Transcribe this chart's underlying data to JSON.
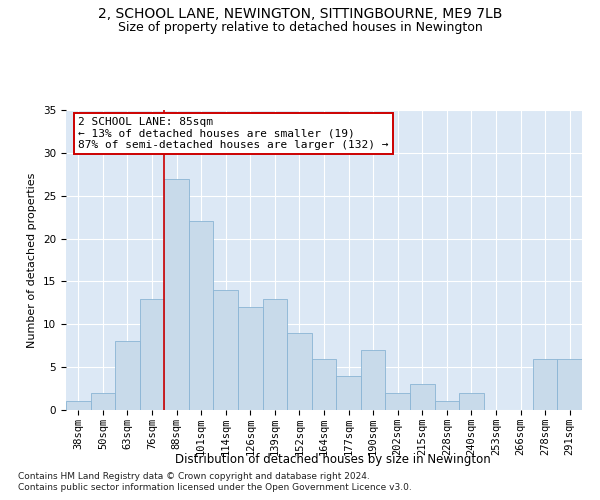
{
  "title": "2, SCHOOL LANE, NEWINGTON, SITTINGBOURNE, ME9 7LB",
  "subtitle": "Size of property relative to detached houses in Newington",
  "xlabel": "Distribution of detached houses by size in Newington",
  "ylabel": "Number of detached properties",
  "categories": [
    "38sqm",
    "50sqm",
    "63sqm",
    "76sqm",
    "88sqm",
    "101sqm",
    "114sqm",
    "126sqm",
    "139sqm",
    "152sqm",
    "164sqm",
    "177sqm",
    "190sqm",
    "202sqm",
    "215sqm",
    "228sqm",
    "240sqm",
    "253sqm",
    "266sqm",
    "278sqm",
    "291sqm"
  ],
  "values": [
    1,
    2,
    8,
    13,
    27,
    22,
    14,
    12,
    13,
    9,
    6,
    4,
    7,
    2,
    3,
    1,
    2,
    0,
    0,
    6,
    6
  ],
  "bar_color": "#c8daea",
  "bar_edge_color": "#8ab4d4",
  "highlight_index": 4,
  "highlight_line_color": "#cc0000",
  "annotation_text": "2 SCHOOL LANE: 85sqm\n← 13% of detached houses are smaller (19)\n87% of semi-detached houses are larger (132) →",
  "annotation_box_color": "#ffffff",
  "annotation_box_edge": "#cc0000",
  "footnote1": "Contains HM Land Registry data © Crown copyright and database right 2024.",
  "footnote2": "Contains public sector information licensed under the Open Government Licence v3.0.",
  "bg_color": "#dce8f5",
  "ylim": [
    0,
    35
  ],
  "yticks": [
    0,
    5,
    10,
    15,
    20,
    25,
    30,
    35
  ],
  "title_fontsize": 10,
  "subtitle_fontsize": 9,
  "xlabel_fontsize": 8.5,
  "ylabel_fontsize": 8,
  "tick_fontsize": 7.5,
  "annot_fontsize": 8,
  "footnote_fontsize": 6.5
}
